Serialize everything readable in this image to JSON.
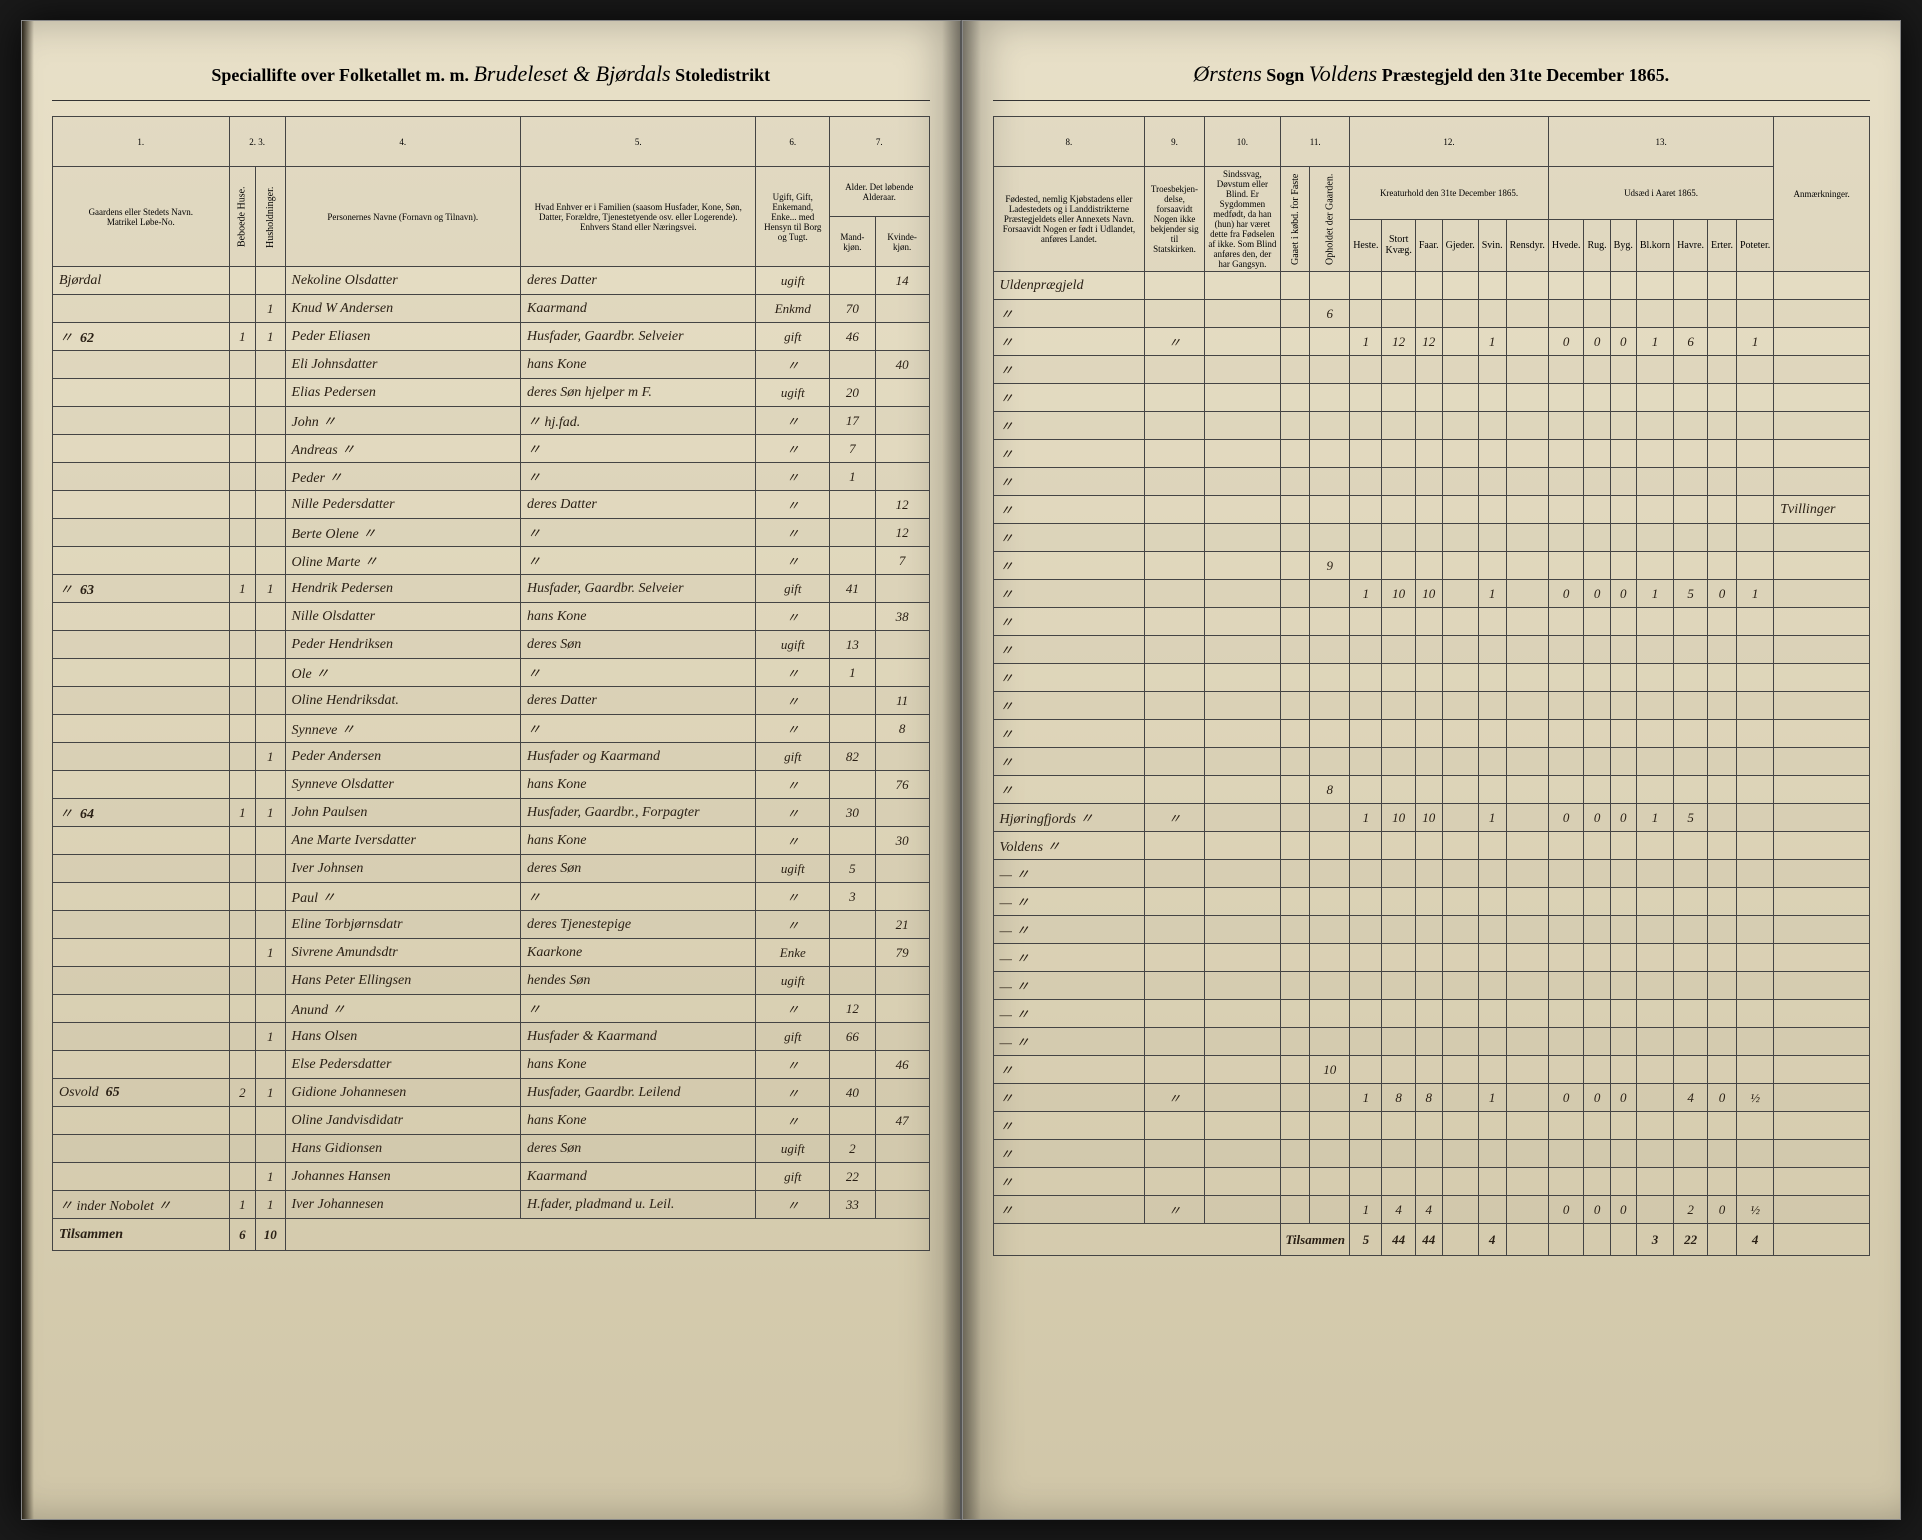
{
  "header": {
    "left_printed_1": "Speciallifte over Folketallet m. m.",
    "left_script": "Brudeleset & Bjørdals",
    "left_printed_2": "Stoledistrikt",
    "right_script_1": "Ørstens",
    "right_printed_1": "Sogn",
    "right_script_2": "Voldens",
    "right_printed_2": "Præstegjeld den 31te December",
    "right_year": "1865."
  },
  "columns_left": {
    "c1": "1.",
    "c2": "2.",
    "c3": "3.",
    "c4": "4.",
    "c5": "5.",
    "c6": "6.",
    "c7": "7.",
    "h1": "Gaardens eller Stedets Navn.",
    "h2": "Matrikel Løbe-No.",
    "h3a": "Beboede Huse.",
    "h3b": "Husholdninger.",
    "h4": "Personernes Navne (Fornavn og Tilnavn).",
    "h5": "Hvad Enhver er i Familien (saasom Husfader, Kone, Søn, Datter, Forældre, Tjenestetyende osv. eller Logerende). Enhvers Stand eller Næringsvei.",
    "h6": "Ugift, Gift, Enkemand, Enke... med Hensyn til Borg og Tugt.",
    "h7": "Alder. Det løbende Alderaar.",
    "h7a": "Mand-kjøn.",
    "h7b": "Kvinde-kjøn."
  },
  "columns_right": {
    "c8": "8.",
    "c9": "9.",
    "c10": "10.",
    "c11": "11.",
    "c12": "12.",
    "c13": "13.",
    "h8": "Fødested, nemlig Kjøbstadens eller Ladestedets og i Landdistrikterne Præstegjeldets eller Annexets Navn. Forsaavidt Nogen er født i Udlandet, anføres Landet.",
    "h9": "Troesbekjen-delse, forsaavidt Nogen ikke bekjender sig til Statskirken.",
    "h10": "Sindssvag, Døvstum eller Blind. Er Sygdommen medfødt, da han (hun) har været dette fra Fødselen af ikke. Som Blind anføres den, der har Gangsyn.",
    "h11a": "Gaaet i købd. for Faste",
    "h11b": "Opholdet der Gaarden.",
    "h12": "Kreaturhold den 31te December 1865.",
    "h12a": "Heste.",
    "h12b": "Stort Kvæg.",
    "h12c": "Faar.",
    "h12d": "Gjeder.",
    "h12e": "Svin.",
    "h12f": "Rensdyr.",
    "h13": "Udsæd i Aaret 1865.",
    "h13a": "Hvede.",
    "h13b": "Rug.",
    "h13c": "Byg.",
    "h13d": "Bl.korn",
    "h13e": "Havre.",
    "h13f": "Erter.",
    "h13g": "Poteter.",
    "h14": "Anmærkninger."
  },
  "rows": [
    {
      "gaard": "Bjørdal",
      "mat": "",
      "bh": "",
      "hh": "",
      "navn": "Nekoline Olsdatter",
      "fam": "deres Datter",
      "stand": "ugift",
      "mk": "",
      "kk": "14",
      "fod": "Uldenprægjeld",
      "tro": "",
      "sind": "",
      "ga": "",
      "op": "",
      "h": "",
      "sk": "",
      "f": "",
      "g": "",
      "sv": "",
      "r": "",
      "hv": "",
      "ru": "",
      "by": "",
      "bl": "",
      "ha": "",
      "er": "",
      "po": "",
      "anm": ""
    },
    {
      "gaard": "",
      "mat": "",
      "bh": "",
      "hh": "1",
      "navn": "Knud W Andersen",
      "fam": "Kaarmand",
      "stand": "Enkmd",
      "mk": "70",
      "kk": "",
      "fod": "〃",
      "tro": "",
      "sind": "",
      "ga": "",
      "op": "6",
      "h": "",
      "sk": "",
      "f": "",
      "g": "",
      "sv": "",
      "r": "",
      "hv": "",
      "ru": "",
      "by": "",
      "bl": "",
      "ha": "",
      "er": "",
      "po": "",
      "anm": ""
    },
    {
      "gaard": "〃",
      "mat": "62",
      "bh": "1",
      "hh": "1",
      "navn": "Peder Eliasen",
      "fam": "Husfader, Gaardbr. Selveier",
      "stand": "gift",
      "mk": "46",
      "kk": "",
      "fod": "〃",
      "tro": "〃",
      "sind": "",
      "ga": "",
      "op": "",
      "h": "1",
      "sk": "12",
      "f": "12",
      "g": "",
      "sv": "1",
      "r": "",
      "hv": "0",
      "ru": "0",
      "by": "0",
      "bl": "1",
      "ha": "6",
      "er": "",
      "po": "1",
      "anm": ""
    },
    {
      "gaard": "",
      "mat": "",
      "bh": "",
      "hh": "",
      "navn": "Eli Johnsdatter",
      "fam": "hans Kone",
      "stand": "〃",
      "mk": "",
      "kk": "40",
      "fod": "〃",
      "tro": "",
      "sind": "",
      "ga": "",
      "op": "",
      "h": "",
      "sk": "",
      "f": "",
      "g": "",
      "sv": "",
      "r": "",
      "hv": "",
      "ru": "",
      "by": "",
      "bl": "",
      "ha": "",
      "er": "",
      "po": "",
      "anm": ""
    },
    {
      "gaard": "",
      "mat": "",
      "bh": "",
      "hh": "",
      "navn": "Elias Pedersen",
      "fam": "deres Søn hjelper m F.",
      "stand": "ugift",
      "mk": "20",
      "kk": "",
      "fod": "〃",
      "tro": "",
      "sind": "",
      "ga": "",
      "op": "",
      "h": "",
      "sk": "",
      "f": "",
      "g": "",
      "sv": "",
      "r": "",
      "hv": "",
      "ru": "",
      "by": "",
      "bl": "",
      "ha": "",
      "er": "",
      "po": "",
      "anm": ""
    },
    {
      "gaard": "",
      "mat": "",
      "bh": "",
      "hh": "",
      "navn": "John 〃",
      "fam": "〃 hj.fad.",
      "stand": "〃",
      "mk": "17",
      "kk": "",
      "fod": "〃",
      "tro": "",
      "sind": "",
      "ga": "",
      "op": "",
      "h": "",
      "sk": "",
      "f": "",
      "g": "",
      "sv": "",
      "r": "",
      "hv": "",
      "ru": "",
      "by": "",
      "bl": "",
      "ha": "",
      "er": "",
      "po": "",
      "anm": ""
    },
    {
      "gaard": "",
      "mat": "",
      "bh": "",
      "hh": "",
      "navn": "Andreas 〃",
      "fam": "〃",
      "stand": "〃",
      "mk": "7",
      "kk": "",
      "fod": "〃",
      "tro": "",
      "sind": "",
      "ga": "",
      "op": "",
      "h": "",
      "sk": "",
      "f": "",
      "g": "",
      "sv": "",
      "r": "",
      "hv": "",
      "ru": "",
      "by": "",
      "bl": "",
      "ha": "",
      "er": "",
      "po": "",
      "anm": ""
    },
    {
      "gaard": "",
      "mat": "",
      "bh": "",
      "hh": "",
      "navn": "Peder 〃",
      "fam": "〃",
      "stand": "〃",
      "mk": "1",
      "kk": "",
      "fod": "〃",
      "tro": "",
      "sind": "",
      "ga": "",
      "op": "",
      "h": "",
      "sk": "",
      "f": "",
      "g": "",
      "sv": "",
      "r": "",
      "hv": "",
      "ru": "",
      "by": "",
      "bl": "",
      "ha": "",
      "er": "",
      "po": "",
      "anm": ""
    },
    {
      "gaard": "",
      "mat": "",
      "bh": "",
      "hh": "",
      "navn": "Nille Pedersdatter",
      "fam": "deres Datter",
      "stand": "〃",
      "mk": "",
      "kk": "12",
      "fod": "〃",
      "tro": "",
      "sind": "",
      "ga": "",
      "op": "",
      "h": "",
      "sk": "",
      "f": "",
      "g": "",
      "sv": "",
      "r": "",
      "hv": "",
      "ru": "",
      "by": "",
      "bl": "",
      "ha": "",
      "er": "",
      "po": "",
      "anm": "Tvillinger"
    },
    {
      "gaard": "",
      "mat": "",
      "bh": "",
      "hh": "",
      "navn": "Berte Olene 〃",
      "fam": "〃",
      "stand": "〃",
      "mk": "",
      "kk": "12",
      "fod": "〃",
      "tro": "",
      "sind": "",
      "ga": "",
      "op": "",
      "h": "",
      "sk": "",
      "f": "",
      "g": "",
      "sv": "",
      "r": "",
      "hv": "",
      "ru": "",
      "by": "",
      "bl": "",
      "ha": "",
      "er": "",
      "po": "",
      "anm": ""
    },
    {
      "gaard": "",
      "mat": "",
      "bh": "",
      "hh": "",
      "navn": "Oline Marte 〃",
      "fam": "〃",
      "stand": "〃",
      "mk": "",
      "kk": "7",
      "fod": "〃",
      "tro": "",
      "sind": "",
      "ga": "",
      "op": "9",
      "h": "",
      "sk": "",
      "f": "",
      "g": "",
      "sv": "",
      "r": "",
      "hv": "",
      "ru": "",
      "by": "",
      "bl": "",
      "ha": "",
      "er": "",
      "po": "",
      "anm": ""
    },
    {
      "gaard": "〃",
      "mat": "63",
      "bh": "1",
      "hh": "1",
      "navn": "Hendrik Pedersen",
      "fam": "Husfader, Gaardbr. Selveier",
      "stand": "gift",
      "mk": "41",
      "kk": "",
      "fod": "〃",
      "tro": "",
      "sind": "",
      "ga": "",
      "op": "",
      "h": "1",
      "sk": "10",
      "f": "10",
      "g": "",
      "sv": "1",
      "r": "",
      "hv": "0",
      "ru": "0",
      "by": "0",
      "bl": "1",
      "ha": "5",
      "er": "0",
      "po": "1",
      "anm": ""
    },
    {
      "gaard": "",
      "mat": "",
      "bh": "",
      "hh": "",
      "navn": "Nille Olsdatter",
      "fam": "hans Kone",
      "stand": "〃",
      "mk": "",
      "kk": "38",
      "fod": "〃",
      "tro": "",
      "sind": "",
      "ga": "",
      "op": "",
      "h": "",
      "sk": "",
      "f": "",
      "g": "",
      "sv": "",
      "r": "",
      "hv": "",
      "ru": "",
      "by": "",
      "bl": "",
      "ha": "",
      "er": "",
      "po": "",
      "anm": ""
    },
    {
      "gaard": "",
      "mat": "",
      "bh": "",
      "hh": "",
      "navn": "Peder Hendriksen",
      "fam": "deres Søn",
      "stand": "ugift",
      "mk": "13",
      "kk": "",
      "fod": "〃",
      "tro": "",
      "sind": "",
      "ga": "",
      "op": "",
      "h": "",
      "sk": "",
      "f": "",
      "g": "",
      "sv": "",
      "r": "",
      "hv": "",
      "ru": "",
      "by": "",
      "bl": "",
      "ha": "",
      "er": "",
      "po": "",
      "anm": ""
    },
    {
      "gaard": "",
      "mat": "",
      "bh": "",
      "hh": "",
      "navn": "Ole 〃",
      "fam": "〃",
      "stand": "〃",
      "mk": "1",
      "kk": "",
      "fod": "〃",
      "tro": "",
      "sind": "",
      "ga": "",
      "op": "",
      "h": "",
      "sk": "",
      "f": "",
      "g": "",
      "sv": "",
      "r": "",
      "hv": "",
      "ru": "",
      "by": "",
      "bl": "",
      "ha": "",
      "er": "",
      "po": "",
      "anm": ""
    },
    {
      "gaard": "",
      "mat": "",
      "bh": "",
      "hh": "",
      "navn": "Oline Hendriksdat.",
      "fam": "deres Datter",
      "stand": "〃",
      "mk": "",
      "kk": "11",
      "fod": "〃",
      "tro": "",
      "sind": "",
      "ga": "",
      "op": "",
      "h": "",
      "sk": "",
      "f": "",
      "g": "",
      "sv": "",
      "r": "",
      "hv": "",
      "ru": "",
      "by": "",
      "bl": "",
      "ha": "",
      "er": "",
      "po": "",
      "anm": ""
    },
    {
      "gaard": "",
      "mat": "",
      "bh": "",
      "hh": "",
      "navn": "Synneve 〃",
      "fam": "〃",
      "stand": "〃",
      "mk": "",
      "kk": "8",
      "fod": "〃",
      "tro": "",
      "sind": "",
      "ga": "",
      "op": "",
      "h": "",
      "sk": "",
      "f": "",
      "g": "",
      "sv": "",
      "r": "",
      "hv": "",
      "ru": "",
      "by": "",
      "bl": "",
      "ha": "",
      "er": "",
      "po": "",
      "anm": ""
    },
    {
      "gaard": "",
      "mat": "",
      "bh": "",
      "hh": "1",
      "navn": "Peder Andersen",
      "fam": "Husfader og Kaarmand",
      "stand": "gift",
      "mk": "82",
      "kk": "",
      "fod": "〃",
      "tro": "",
      "sind": "",
      "ga": "",
      "op": "",
      "h": "",
      "sk": "",
      "f": "",
      "g": "",
      "sv": "",
      "r": "",
      "hv": "",
      "ru": "",
      "by": "",
      "bl": "",
      "ha": "",
      "er": "",
      "po": "",
      "anm": ""
    },
    {
      "gaard": "",
      "mat": "",
      "bh": "",
      "hh": "",
      "navn": "Synneve Olsdatter",
      "fam": "hans Kone",
      "stand": "〃",
      "mk": "",
      "kk": "76",
      "fod": "〃",
      "tro": "",
      "sind": "",
      "ga": "",
      "op": "8",
      "h": "",
      "sk": "",
      "f": "",
      "g": "",
      "sv": "",
      "r": "",
      "hv": "",
      "ru": "",
      "by": "",
      "bl": "",
      "ha": "",
      "er": "",
      "po": "",
      "anm": ""
    },
    {
      "gaard": "〃",
      "mat": "64",
      "bh": "1",
      "hh": "1",
      "navn": "John Paulsen",
      "fam": "Husfader, Gaardbr., Forpagter",
      "stand": "〃",
      "mk": "30",
      "kk": "",
      "fod": "Hjøringfjords 〃",
      "tro": "〃",
      "sind": "",
      "ga": "",
      "op": "",
      "h": "1",
      "sk": "10",
      "f": "10",
      "g": "",
      "sv": "1",
      "r": "",
      "hv": "0",
      "ru": "0",
      "by": "0",
      "bl": "1",
      "ha": "5",
      "er": "",
      "po": "",
      "anm": ""
    },
    {
      "gaard": "",
      "mat": "",
      "bh": "",
      "hh": "",
      "navn": "Ane Marte Iversdatter",
      "fam": "hans Kone",
      "stand": "〃",
      "mk": "",
      "kk": "30",
      "fod": "Voldens 〃",
      "tro": "",
      "sind": "",
      "ga": "",
      "op": "",
      "h": "",
      "sk": "",
      "f": "",
      "g": "",
      "sv": "",
      "r": "",
      "hv": "",
      "ru": "",
      "by": "",
      "bl": "",
      "ha": "",
      "er": "",
      "po": "",
      "anm": ""
    },
    {
      "gaard": "",
      "mat": "",
      "bh": "",
      "hh": "",
      "navn": "Iver Johnsen",
      "fam": "deres Søn",
      "stand": "ugift",
      "mk": "5",
      "kk": "",
      "fod": "— 〃",
      "tro": "",
      "sind": "",
      "ga": "",
      "op": "",
      "h": "",
      "sk": "",
      "f": "",
      "g": "",
      "sv": "",
      "r": "",
      "hv": "",
      "ru": "",
      "by": "",
      "bl": "",
      "ha": "",
      "er": "",
      "po": "",
      "anm": ""
    },
    {
      "gaard": "",
      "mat": "",
      "bh": "",
      "hh": "",
      "navn": "Paul 〃",
      "fam": "〃",
      "stand": "〃",
      "mk": "3",
      "kk": "",
      "fod": "— 〃",
      "tro": "",
      "sind": "",
      "ga": "",
      "op": "",
      "h": "",
      "sk": "",
      "f": "",
      "g": "",
      "sv": "",
      "r": "",
      "hv": "",
      "ru": "",
      "by": "",
      "bl": "",
      "ha": "",
      "er": "",
      "po": "",
      "anm": ""
    },
    {
      "gaard": "",
      "mat": "",
      "bh": "",
      "hh": "",
      "navn": "Eline Torbjørnsdatr",
      "fam": "deres Tjenestepige",
      "stand": "〃",
      "mk": "",
      "kk": "21",
      "fod": "— 〃",
      "tro": "",
      "sind": "",
      "ga": "",
      "op": "",
      "h": "",
      "sk": "",
      "f": "",
      "g": "",
      "sv": "",
      "r": "",
      "hv": "",
      "ru": "",
      "by": "",
      "bl": "",
      "ha": "",
      "er": "",
      "po": "",
      "anm": ""
    },
    {
      "gaard": "",
      "mat": "",
      "bh": "",
      "hh": "1",
      "navn": "Sivrene Amundsdtr",
      "fam": "Kaarkone",
      "stand": "Enke",
      "mk": "",
      "kk": "79",
      "fod": "— 〃",
      "tro": "",
      "sind": "",
      "ga": "",
      "op": "",
      "h": "",
      "sk": "",
      "f": "",
      "g": "",
      "sv": "",
      "r": "",
      "hv": "",
      "ru": "",
      "by": "",
      "bl": "",
      "ha": "",
      "er": "",
      "po": "",
      "anm": ""
    },
    {
      "gaard": "",
      "mat": "",
      "bh": "",
      "hh": "",
      "navn": "Hans Peter Ellingsen",
      "fam": "hendes Søn",
      "stand": "ugift",
      "mk": "",
      "kk": "",
      "fod": "— 〃",
      "tro": "",
      "sind": "",
      "ga": "",
      "op": "",
      "h": "",
      "sk": "",
      "f": "",
      "g": "",
      "sv": "",
      "r": "",
      "hv": "",
      "ru": "",
      "by": "",
      "bl": "",
      "ha": "",
      "er": "",
      "po": "",
      "anm": ""
    },
    {
      "gaard": "",
      "mat": "",
      "bh": "",
      "hh": "",
      "navn": "Anund 〃",
      "fam": "〃",
      "stand": "〃",
      "mk": "12",
      "kk": "",
      "fod": "— 〃",
      "tro": "",
      "sind": "",
      "ga": "",
      "op": "",
      "h": "",
      "sk": "",
      "f": "",
      "g": "",
      "sv": "",
      "r": "",
      "hv": "",
      "ru": "",
      "by": "",
      "bl": "",
      "ha": "",
      "er": "",
      "po": "",
      "anm": ""
    },
    {
      "gaard": "",
      "mat": "",
      "bh": "",
      "hh": "1",
      "navn": "Hans Olsen",
      "fam": "Husfader & Kaarmand",
      "stand": "gift",
      "mk": "66",
      "kk": "",
      "fod": "— 〃",
      "tro": "",
      "sind": "",
      "ga": "",
      "op": "",
      "h": "",
      "sk": "",
      "f": "",
      "g": "",
      "sv": "",
      "r": "",
      "hv": "",
      "ru": "",
      "by": "",
      "bl": "",
      "ha": "",
      "er": "",
      "po": "",
      "anm": ""
    },
    {
      "gaard": "",
      "mat": "",
      "bh": "",
      "hh": "",
      "navn": "Else Pedersdatter",
      "fam": "hans Kone",
      "stand": "〃",
      "mk": "",
      "kk": "46",
      "fod": "〃",
      "tro": "",
      "sind": "",
      "ga": "",
      "op": "10",
      "h": "",
      "sk": "",
      "f": "",
      "g": "",
      "sv": "",
      "r": "",
      "hv": "",
      "ru": "",
      "by": "",
      "bl": "",
      "ha": "",
      "er": "",
      "po": "",
      "anm": ""
    },
    {
      "gaard": "Osvold",
      "mat": "65",
      "bh": "2",
      "hh": "1",
      "navn": "Gidione Johannesen",
      "fam": "Husfader, Gaardbr. Leilend",
      "stand": "〃",
      "mk": "40",
      "kk": "",
      "fod": "〃",
      "tro": "〃",
      "sind": "",
      "ga": "",
      "op": "",
      "h": "1",
      "sk": "8",
      "f": "8",
      "g": "",
      "sv": "1",
      "r": "",
      "hv": "0",
      "ru": "0",
      "by": "0",
      "bl": "",
      "ha": "4",
      "er": "0",
      "po": "½",
      "anm": ""
    },
    {
      "gaard": "",
      "mat": "",
      "bh": "",
      "hh": "",
      "navn": "Oline Jandvisdidatr",
      "fam": "hans Kone",
      "stand": "〃",
      "mk": "",
      "kk": "47",
      "fod": "〃",
      "tro": "",
      "sind": "",
      "ga": "",
      "op": "",
      "h": "",
      "sk": "",
      "f": "",
      "g": "",
      "sv": "",
      "r": "",
      "hv": "",
      "ru": "",
      "by": "",
      "bl": "",
      "ha": "",
      "er": "",
      "po": "",
      "anm": ""
    },
    {
      "gaard": "",
      "mat": "",
      "bh": "",
      "hh": "",
      "navn": "Hans Gidionsen",
      "fam": "deres Søn",
      "stand": "ugift",
      "mk": "2",
      "kk": "",
      "fod": "〃",
      "tro": "",
      "sind": "",
      "ga": "",
      "op": "",
      "h": "",
      "sk": "",
      "f": "",
      "g": "",
      "sv": "",
      "r": "",
      "hv": "",
      "ru": "",
      "by": "",
      "bl": "",
      "ha": "",
      "er": "",
      "po": "",
      "anm": ""
    },
    {
      "gaard": "",
      "mat": "",
      "bh": "",
      "hh": "1",
      "navn": "Johannes Hansen",
      "fam": "Kaarmand",
      "stand": "gift",
      "mk": "22",
      "kk": "",
      "fod": "〃",
      "tro": "",
      "sind": "",
      "ga": "",
      "op": "",
      "h": "",
      "sk": "",
      "f": "",
      "g": "",
      "sv": "",
      "r": "",
      "hv": "",
      "ru": "",
      "by": "",
      "bl": "",
      "ha": "",
      "er": "",
      "po": "",
      "anm": ""
    },
    {
      "gaard": "〃 inder Nobolet 〃",
      "mat": "",
      "bh": "1",
      "hh": "1",
      "navn": "Iver Johannesen",
      "fam": "H.fader, pladmand u. Leil.",
      "stand": "〃",
      "mk": "33",
      "kk": "",
      "fod": "〃",
      "tro": "〃",
      "sind": "",
      "ga": "",
      "op": "",
      "h": "1",
      "sk": "4",
      "f": "4",
      "g": "",
      "sv": "",
      "r": "",
      "hv": "0",
      "ru": "0",
      "by": "0",
      "bl": "",
      "ha": "2",
      "er": "0",
      "po": "½",
      "anm": ""
    }
  ],
  "footer": {
    "label": "Tilsammen",
    "left_bh": "6",
    "left_hh": "10",
    "right_label": "Tilsammen",
    "vals": {
      "h": "5",
      "sk": "44",
      "f": "44",
      "g": "",
      "sv": "4",
      "r": "",
      "hv": "",
      "ru": "",
      "by": "",
      "bl": "3",
      "ha": "22",
      "er": "",
      "po": "4"
    }
  }
}
